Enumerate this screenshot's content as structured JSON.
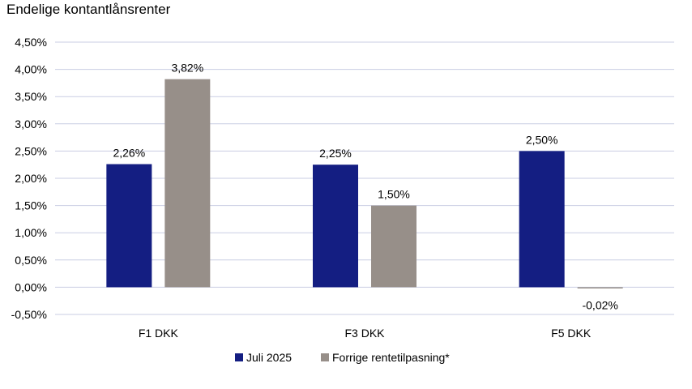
{
  "chart_data": {
    "type": "bar",
    "title": "Endelige kontantlånsrenter",
    "categories": [
      "F1 DKK",
      "F3 DKK",
      "F5 DKK"
    ],
    "series": [
      {
        "name": "Juli 2025",
        "color": "#141E82",
        "values": [
          2.26,
          2.25,
          2.5
        ],
        "labels": [
          "2,26%",
          "2,25%",
          "2,50%"
        ]
      },
      {
        "name": "Forrige rentetilpasning*",
        "color": "#978F89",
        "values": [
          3.82,
          1.5,
          -0.02
        ],
        "labels": [
          "3,82%",
          "1,50%",
          "-0,02%"
        ]
      }
    ],
    "ylim": [
      -0.5,
      4.5
    ],
    "yticks": [
      4.5,
      4.0,
      3.5,
      3.0,
      2.5,
      2.0,
      1.5,
      1.0,
      0.5,
      0.0,
      -0.5
    ],
    "ytick_labels": [
      "4,50%",
      "4,00%",
      "3,50%",
      "3,00%",
      "2,50%",
      "2,00%",
      "1,50%",
      "1,00%",
      "0,50%",
      "0,00%",
      "-0,50%"
    ],
    "grid": true,
    "legend_position": "bottom"
  }
}
